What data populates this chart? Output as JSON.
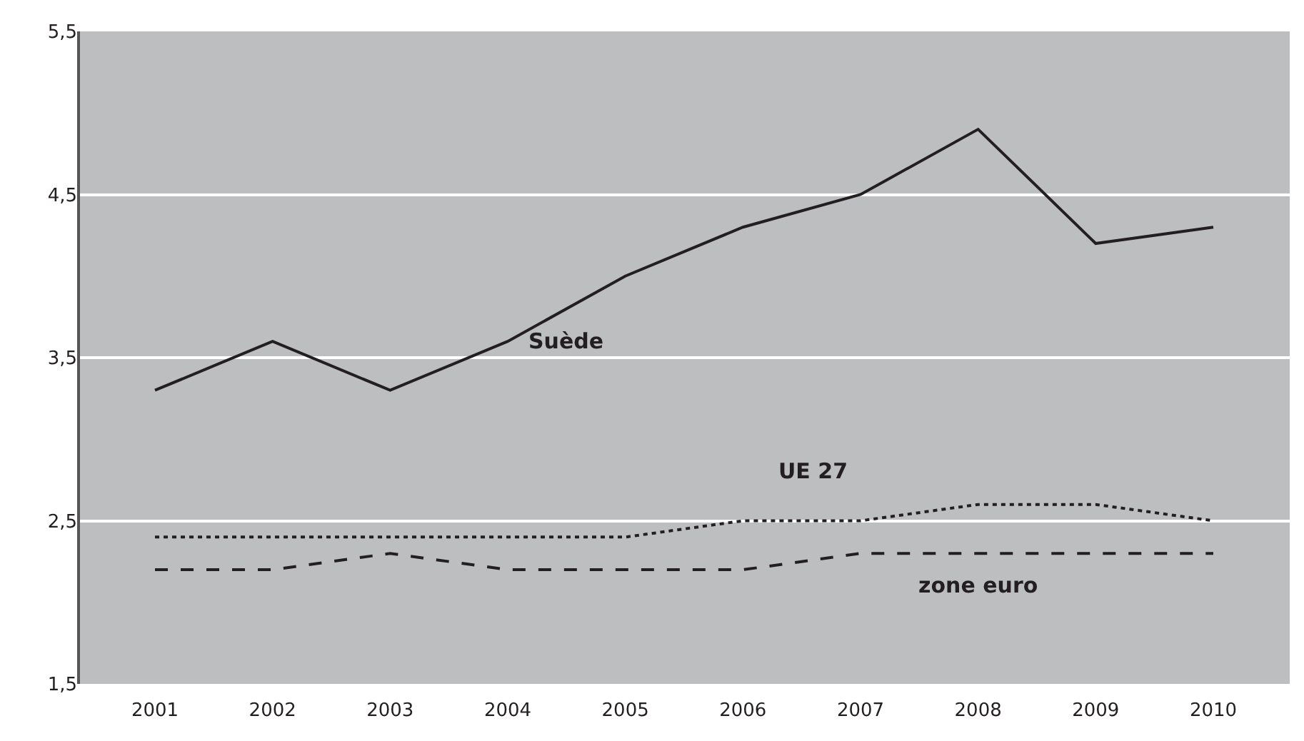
{
  "chart_data": {
    "type": "line",
    "categories": [
      "2001",
      "2002",
      "2003",
      "2004",
      "2005",
      "2006",
      "2007",
      "2008",
      "2009",
      "2010"
    ],
    "series": [
      {
        "name": "Suède",
        "color": "#231f20",
        "line_style": "solid",
        "values": [
          3.3,
          3.6,
          3.3,
          3.6,
          4.0,
          4.3,
          4.5,
          4.9,
          4.2,
          4.3
        ]
      },
      {
        "name": "UE 27",
        "color": "#231f20",
        "line_style": "dotted",
        "values": [
          2.4,
          2.4,
          2.4,
          2.4,
          2.4,
          2.5,
          2.5,
          2.6,
          2.6,
          2.5
        ]
      },
      {
        "name": "zone euro",
        "color": "#231f20",
        "line_style": "dashed",
        "values": [
          2.2,
          2.2,
          2.3,
          2.2,
          2.2,
          2.2,
          2.3,
          2.3,
          2.3,
          2.3
        ]
      }
    ],
    "ylim": [
      1.5,
      5.5
    ],
    "yticks": [
      {
        "value": 1.5,
        "label": "1,5"
      },
      {
        "value": 2.5,
        "label": "2,5"
      },
      {
        "value": 3.5,
        "label": "3,5"
      },
      {
        "value": 4.5,
        "label": "4,5"
      },
      {
        "value": 5.5,
        "label": "5,5"
      }
    ],
    "grid": "y",
    "legend": false,
    "marker": "none"
  }
}
